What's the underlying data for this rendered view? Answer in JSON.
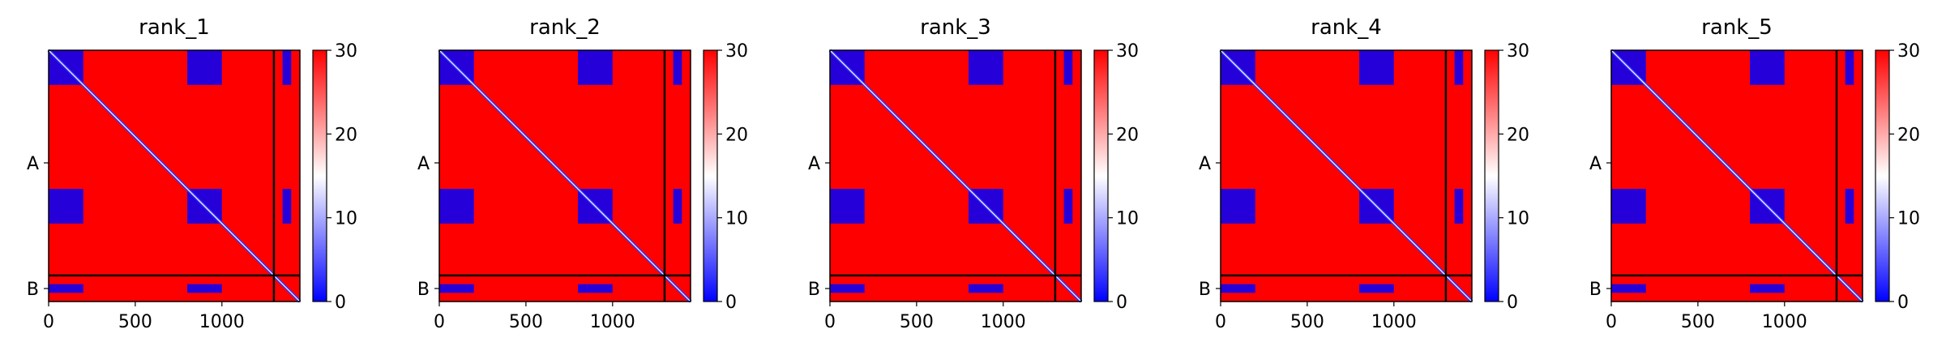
{
  "chart_data": {
    "type": "heatmap",
    "colormap": {
      "low": "#0000ff",
      "mid": "#ffffff",
      "high": "#ff0000",
      "range": [
        0,
        30
      ]
    },
    "chain_labels": [
      "A",
      "B"
    ],
    "chain_boundary": 1300,
    "length": 1450,
    "xticks": [
      0,
      500,
      1000
    ],
    "colorbar_ticks": [
      0,
      10,
      20,
      30
    ],
    "panels": [
      {
        "title": "rank_1"
      },
      {
        "title": "rank_2"
      },
      {
        "title": "rank_3"
      },
      {
        "title": "rank_4"
      },
      {
        "title": "rank_5"
      }
    ],
    "low_value_blocks": [
      {
        "x": [
          0,
          200
        ],
        "y": [
          0,
          200
        ]
      },
      {
        "x": [
          800,
          1000
        ],
        "y": [
          0,
          200
        ]
      },
      {
        "x": [
          0,
          200
        ],
        "y": [
          800,
          1000
        ]
      },
      {
        "x": [
          800,
          1000
        ],
        "y": [
          800,
          1000
        ]
      },
      {
        "x": [
          0,
          200
        ],
        "y": [
          1350,
          1400
        ]
      },
      {
        "x": [
          800,
          1000
        ],
        "y": [
          1350,
          1400
        ]
      },
      {
        "x": [
          1350,
          1400
        ],
        "y": [
          0,
          200
        ]
      },
      {
        "x": [
          1350,
          1400
        ],
        "y": [
          800,
          1000
        ]
      }
    ]
  }
}
